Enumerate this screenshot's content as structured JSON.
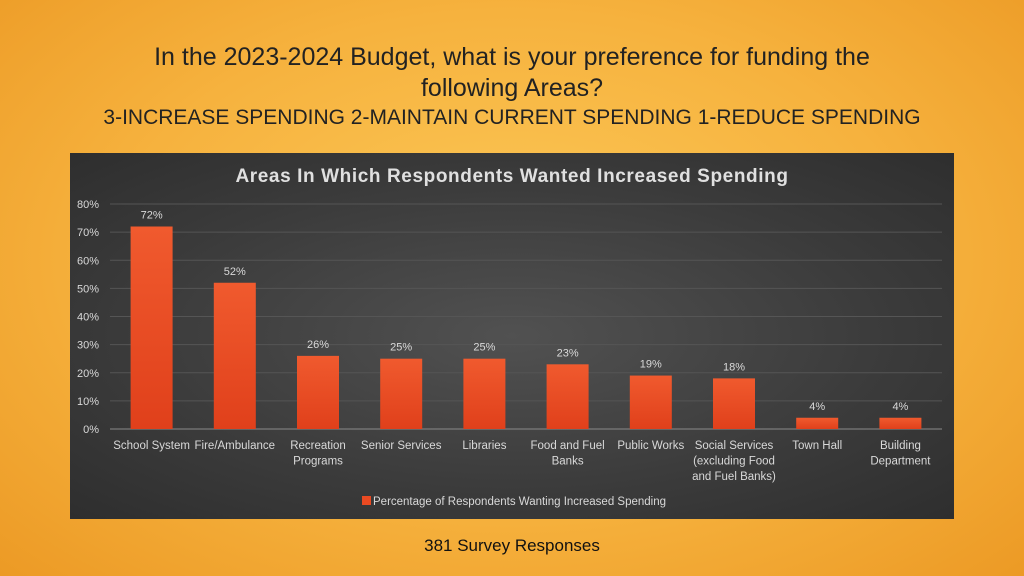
{
  "header": {
    "line1": "In the 2023-2024 Budget, what is your preference for funding the",
    "line2": "following Areas?",
    "line3": "3-INCREASE SPENDING   2-MAINTAIN CURRENT SPENDING   1-REDUCE SPENDING"
  },
  "footer": {
    "text": "381 Survey Responses"
  },
  "colors": {
    "bar": "#ea4a22",
    "bar_light": "#f26b3f",
    "panel": "#404040",
    "text": "#d9d9d9"
  },
  "chart_data": {
    "type": "bar",
    "title": "Areas In Which Respondents Wanted Increased Spending",
    "categories": [
      [
        "School System"
      ],
      [
        "Fire/Ambulance"
      ],
      [
        "Recreation",
        "Programs"
      ],
      [
        "Senior Services"
      ],
      [
        "Libraries"
      ],
      [
        "Food and Fuel",
        "Banks"
      ],
      [
        "Public Works"
      ],
      [
        "Social Services",
        "(excluding Food",
        "and Fuel Banks)"
      ],
      [
        "Town Hall"
      ],
      [
        "Building",
        "Department"
      ]
    ],
    "series": [
      {
        "name": "Percentage of Respondents Wanting Increased Spending",
        "values": [
          72,
          52,
          26,
          25,
          25,
          23,
          19,
          18,
          4,
          4
        ]
      }
    ],
    "data_labels": [
      "72%",
      "52%",
      "26%",
      "25%",
      "25%",
      "23%",
      "19%",
      "18%",
      "4%",
      "4%"
    ],
    "y_ticks": [
      "0%",
      "10%",
      "20%",
      "30%",
      "40%",
      "50%",
      "60%",
      "70%",
      "80%"
    ],
    "ylim": [
      0,
      80
    ],
    "grid": true,
    "legend": "bottom"
  }
}
